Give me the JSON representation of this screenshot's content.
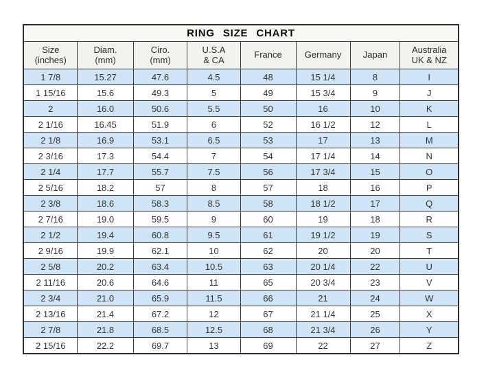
{
  "title": "RING  SIZE  CHART",
  "colors": {
    "row_alt_background": "#cfe4f6",
    "header_background": "#f2f2ee",
    "border": "#3a3a3a",
    "text": "#333333"
  },
  "chart_data": {
    "type": "table",
    "title": "RING SIZE CHART",
    "columns": [
      {
        "id": "size-inches",
        "line1": "Size",
        "line2": "(inches)"
      },
      {
        "id": "diam-mm",
        "line1": "Diam.",
        "line2": "(mm)"
      },
      {
        "id": "ciro-mm",
        "line1": "Ciro.",
        "line2": "(mm)"
      },
      {
        "id": "usa-ca",
        "line1": "U.S.A",
        "line2": "& CA"
      },
      {
        "id": "france",
        "line1": "France",
        "line2": ""
      },
      {
        "id": "germany",
        "line1": "Germany",
        "line2": ""
      },
      {
        "id": "japan",
        "line1": "Japan",
        "line2": ""
      },
      {
        "id": "australia-uk-nz",
        "line1": "Australia",
        "line2": "UK & NZ"
      }
    ],
    "rows": [
      [
        "1 7/8",
        "15.27",
        "47.6",
        "4.5",
        "48",
        "15 1/4",
        "8",
        "I"
      ],
      [
        "1 15/16",
        "15.6",
        "49.3",
        "5",
        "49",
        "15 3/4",
        "9",
        "J"
      ],
      [
        "2",
        "16.0",
        "50.6",
        "5.5",
        "50",
        "16",
        "10",
        "K"
      ],
      [
        "2 1/16",
        "16.45",
        "51.9",
        "6",
        "52",
        "16 1/2",
        "12",
        "L"
      ],
      [
        "2 1/8",
        "16.9",
        "53.1",
        "6.5",
        "53",
        "17",
        "13",
        "M"
      ],
      [
        "2 3/16",
        "17.3",
        "54.4",
        "7",
        "54",
        "17 1/4",
        "14",
        "N"
      ],
      [
        "2 1/4",
        "17.7",
        "55.7",
        "7.5",
        "56",
        "17 3/4",
        "15",
        "O"
      ],
      [
        "2 5/16",
        "18.2",
        "57",
        "8",
        "57",
        "18",
        "16",
        "P"
      ],
      [
        "2 3/8",
        "18.6",
        "58.3",
        "8.5",
        "58",
        "18 1/2",
        "17",
        "Q"
      ],
      [
        "2 7/16",
        "19.0",
        "59.5",
        "9",
        "60",
        "19",
        "18",
        "R"
      ],
      [
        "2 1/2",
        "19.4",
        "60.8",
        "9.5",
        "61",
        "19 1/2",
        "19",
        "S"
      ],
      [
        "2 9/16",
        "19.9",
        "62.1",
        "10",
        "62",
        "20",
        "20",
        "T"
      ],
      [
        "2 5/8",
        "20.2",
        "63.4",
        "10.5",
        "63",
        "20 1/4",
        "22",
        "U"
      ],
      [
        "2 11/16",
        "20.6",
        "64.6",
        "11",
        "65",
        "20 3/4",
        "23",
        "V"
      ],
      [
        "2 3/4",
        "21.0",
        "65.9",
        "11.5",
        "66",
        "21",
        "24",
        "W"
      ],
      [
        "2 13/16",
        "21.4",
        "67.2",
        "12",
        "67",
        "21 1/4",
        "25",
        "X"
      ],
      [
        "2 7/8",
        "21.8",
        "68.5",
        "12.5",
        "68",
        "21 3/4",
        "26",
        "Y"
      ],
      [
        "2 15/16",
        "22.2",
        "69.7",
        "13",
        "69",
        "22",
        "27",
        "Z"
      ]
    ]
  }
}
